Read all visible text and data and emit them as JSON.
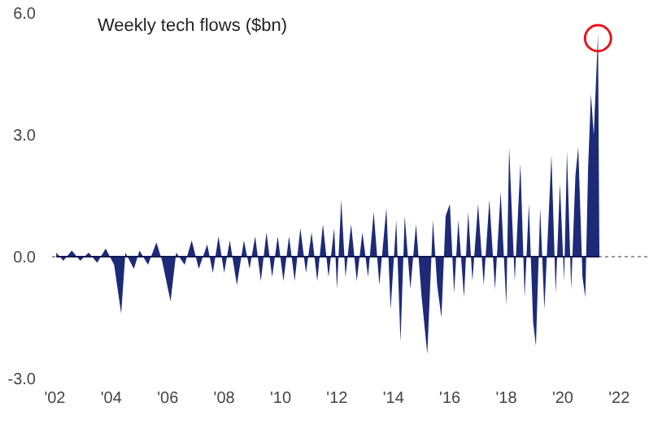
{
  "chart_data": {
    "type": "area",
    "title": "Weekly tech flows ($bn)",
    "x": [
      2002.05,
      2002.3,
      2002.6,
      2002.9,
      2003.2,
      2003.5,
      2003.8,
      2004.1,
      2004.35,
      2004.5,
      2004.8,
      2005.0,
      2005.3,
      2005.6,
      2005.8,
      2006.1,
      2006.3,
      2006.6,
      2006.85,
      2007.1,
      2007.4,
      2007.6,
      2007.8,
      2008.0,
      2008.2,
      2008.45,
      2008.7,
      2008.9,
      2009.1,
      2009.3,
      2009.5,
      2009.7,
      2009.9,
      2010.1,
      2010.3,
      2010.5,
      2010.7,
      2010.9,
      2011.1,
      2011.3,
      2011.5,
      2011.7,
      2011.9,
      2012.0,
      2012.15,
      2012.3,
      2012.5,
      2012.7,
      2012.9,
      2013.1,
      2013.3,
      2013.5,
      2013.75,
      2013.9,
      2014.1,
      2014.25,
      2014.4,
      2014.6,
      2014.8,
      2015.0,
      2015.2,
      2015.4,
      2015.55,
      2015.7,
      2015.85,
      2016.0,
      2016.15,
      2016.3,
      2016.5,
      2016.65,
      2016.8,
      2017.0,
      2017.2,
      2017.4,
      2017.6,
      2017.8,
      2018.0,
      2018.1,
      2018.3,
      2018.5,
      2018.65,
      2018.8,
      2018.95,
      2019.05,
      2019.2,
      2019.35,
      2019.6,
      2019.75,
      2019.9,
      2020.05,
      2020.15,
      2020.3,
      2020.45,
      2020.55,
      2020.7,
      2020.8,
      2020.9,
      2021.0,
      2021.1,
      2021.25,
      2021.3
    ],
    "series": [
      {
        "color": "#1c2a78",
        "values": [
          0.1,
          -0.1,
          0.15,
          -0.1,
          0.1,
          -0.15,
          0.2,
          -0.2,
          -1.4,
          0.1,
          -0.3,
          0.15,
          -0.2,
          0.35,
          -0.1,
          -1.1,
          0.1,
          -0.2,
          0.4,
          -0.3,
          0.3,
          -0.4,
          0.5,
          -0.4,
          0.4,
          -0.7,
          0.4,
          -0.3,
          0.5,
          -0.6,
          0.6,
          -0.5,
          0.5,
          -0.6,
          0.5,
          -0.6,
          0.7,
          -0.4,
          0.6,
          -0.6,
          0.8,
          -0.5,
          0.7,
          -0.8,
          1.4,
          -0.5,
          0.8,
          -0.6,
          0.6,
          -0.5,
          1.1,
          -0.7,
          1.2,
          -1.3,
          0.9,
          -2.1,
          1.0,
          -0.8,
          0.8,
          -1.0,
          -2.4,
          0.9,
          -0.7,
          -1.5,
          1.0,
          1.3,
          -0.9,
          0.9,
          -1.0,
          1.1,
          -0.6,
          1.3,
          -0.7,
          1.4,
          -0.8,
          1.6,
          -1.2,
          2.7,
          -0.6,
          2.3,
          -1.0,
          1.3,
          -1.6,
          -2.2,
          1.2,
          -1.3,
          2.5,
          -0.9,
          1.8,
          -0.6,
          2.6,
          -0.8,
          2.0,
          2.7,
          -0.5,
          -1.0,
          2.2,
          4.0,
          3.0,
          5.5,
          0
        ]
      }
    ],
    "xlim": [
      2001.9,
      2023
    ],
    "xticks": [
      {
        "value": 2002,
        "label": "'02"
      },
      {
        "value": 2004,
        "label": "'04"
      },
      {
        "value": 2006,
        "label": "'06"
      },
      {
        "value": 2008,
        "label": "'08"
      },
      {
        "value": 2010,
        "label": "'10"
      },
      {
        "value": 2012,
        "label": "'12"
      },
      {
        "value": 2014,
        "label": "'14"
      },
      {
        "value": 2016,
        "label": "'16"
      },
      {
        "value": 2018,
        "label": "'18"
      },
      {
        "value": 2020,
        "label": "'20"
      },
      {
        "value": 2022,
        "label": "'22"
      }
    ],
    "ylim": [
      -3,
      6
    ],
    "ref_lines": [
      {
        "axis": "y",
        "value": 0,
        "color": "#999999",
        "line_style": "dotted"
      }
    ],
    "yticks": [
      {
        "value": -3,
        "label": "-3.0"
      },
      {
        "value": 0,
        "label": "0.0"
      },
      {
        "value": 3,
        "label": "3.0"
      },
      {
        "value": 6,
        "label": "6.0"
      }
    ]
  }
}
